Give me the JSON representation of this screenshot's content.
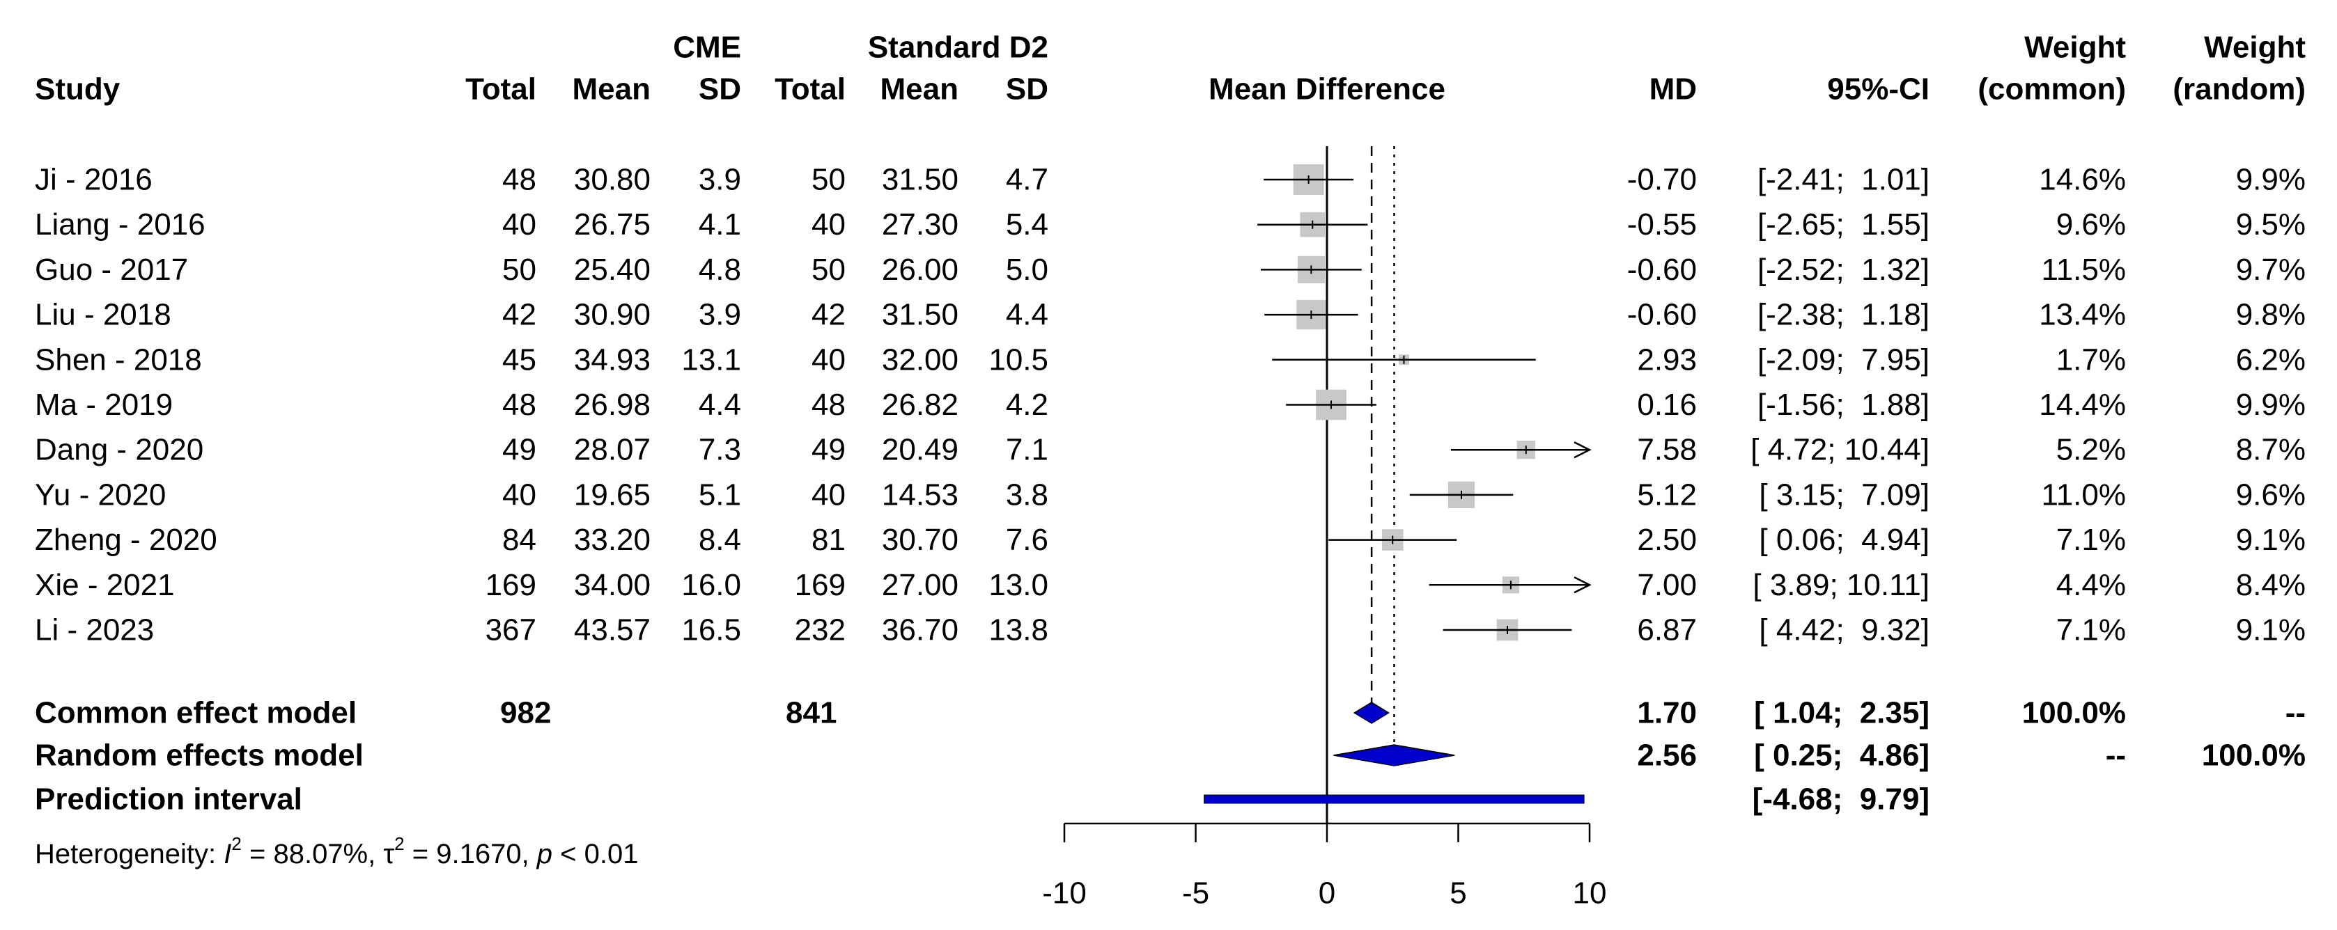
{
  "chart_data": {
    "type": "forest",
    "group_headers": {
      "experimental": "CME",
      "control": "Standard D2"
    },
    "column_headers": {
      "study": "Study",
      "total": "Total",
      "mean": "Mean",
      "sd": "SD",
      "plot": "Mean Difference",
      "md": "MD",
      "ci": "95%-CI",
      "weight_label": "Weight",
      "weight_common": "(common)",
      "weight_random": "(random)"
    },
    "studies": [
      {
        "name": "Ji - 2016",
        "e_total": "48",
        "e_mean": "30.80",
        "e_sd": "3.9",
        "c_total": "50",
        "c_mean": "31.50",
        "c_sd": "4.7",
        "md": -0.7,
        "lo": -2.41,
        "hi": 1.01,
        "md_text": "-0.70",
        "ci_text": "[-2.41;  1.01]",
        "w_common": "14.6%",
        "w_random": "9.9%"
      },
      {
        "name": "Liang - 2016",
        "e_total": "40",
        "e_mean": "26.75",
        "e_sd": "4.1",
        "c_total": "40",
        "c_mean": "27.30",
        "c_sd": "5.4",
        "md": -0.55,
        "lo": -2.65,
        "hi": 1.55,
        "md_text": "-0.55",
        "ci_text": "[-2.65;  1.55]",
        "w_common": "9.6%",
        "w_random": "9.5%"
      },
      {
        "name": "Guo - 2017",
        "e_total": "50",
        "e_mean": "25.40",
        "e_sd": "4.8",
        "c_total": "50",
        "c_mean": "26.00",
        "c_sd": "5.0",
        "md": -0.6,
        "lo": -2.52,
        "hi": 1.32,
        "md_text": "-0.60",
        "ci_text": "[-2.52;  1.32]",
        "w_common": "11.5%",
        "w_random": "9.7%"
      },
      {
        "name": "Liu - 2018",
        "e_total": "42",
        "e_mean": "30.90",
        "e_sd": "3.9",
        "c_total": "42",
        "c_mean": "31.50",
        "c_sd": "4.4",
        "md": -0.6,
        "lo": -2.38,
        "hi": 1.18,
        "md_text": "-0.60",
        "ci_text": "[-2.38;  1.18]",
        "w_common": "13.4%",
        "w_random": "9.8%"
      },
      {
        "name": "Shen - 2018",
        "e_total": "45",
        "e_mean": "34.93",
        "e_sd": "13.1",
        "c_total": "40",
        "c_mean": "32.00",
        "c_sd": "10.5",
        "md": 2.93,
        "lo": -2.09,
        "hi": 7.95,
        "md_text": "2.93",
        "ci_text": "[-2.09;  7.95]",
        "w_common": "1.7%",
        "w_random": "6.2%"
      },
      {
        "name": "Ma - 2019",
        "e_total": "48",
        "e_mean": "26.98",
        "e_sd": "4.4",
        "c_total": "48",
        "c_mean": "26.82",
        "c_sd": "4.2",
        "md": 0.16,
        "lo": -1.56,
        "hi": 1.88,
        "md_text": "0.16",
        "ci_text": "[-1.56;  1.88]",
        "w_common": "14.4%",
        "w_random": "9.9%"
      },
      {
        "name": "Dang - 2020",
        "e_total": "49",
        "e_mean": "28.07",
        "e_sd": "7.3",
        "c_total": "49",
        "c_mean": "20.49",
        "c_sd": "7.1",
        "md": 7.58,
        "lo": 4.72,
        "hi": 10.44,
        "md_text": "7.58",
        "ci_text": "[ 4.72; 10.44]",
        "w_common": "5.2%",
        "w_random": "8.7%"
      },
      {
        "name": "Yu - 2020",
        "e_total": "40",
        "e_mean": "19.65",
        "e_sd": "5.1",
        "c_total": "40",
        "c_mean": "14.53",
        "c_sd": "3.8",
        "md": 5.12,
        "lo": 3.15,
        "hi": 7.09,
        "md_text": "5.12",
        "ci_text": "[ 3.15;  7.09]",
        "w_common": "11.0%",
        "w_random": "9.6%"
      },
      {
        "name": "Zheng - 2020",
        "e_total": "84",
        "e_mean": "33.20",
        "e_sd": "8.4",
        "c_total": "81",
        "c_mean": "30.70",
        "c_sd": "7.6",
        "md": 2.5,
        "lo": 0.06,
        "hi": 4.94,
        "md_text": "2.50",
        "ci_text": "[ 0.06;  4.94]",
        "w_common": "7.1%",
        "w_random": "9.1%"
      },
      {
        "name": "Xie - 2021",
        "e_total": "169",
        "e_mean": "34.00",
        "e_sd": "16.0",
        "c_total": "169",
        "c_mean": "27.00",
        "c_sd": "13.0",
        "md": 7.0,
        "lo": 3.89,
        "hi": 10.11,
        "md_text": "7.00",
        "ci_text": "[ 3.89; 10.11]",
        "w_common": "4.4%",
        "w_random": "8.4%"
      },
      {
        "name": "Li - 2023",
        "e_total": "367",
        "e_mean": "43.57",
        "e_sd": "16.5",
        "c_total": "232",
        "c_mean": "36.70",
        "c_sd": "13.8",
        "md": 6.87,
        "lo": 4.42,
        "hi": 9.32,
        "md_text": "6.87",
        "ci_text": "[ 4.42;  9.32]",
        "w_common": "7.1%",
        "w_random": "9.1%"
      }
    ],
    "summary": [
      {
        "name": "Common effect model",
        "kind": "diamond",
        "md": 1.7,
        "lo": 1.04,
        "hi": 2.35,
        "e_total": "982",
        "c_total": "841",
        "md_text": "1.70",
        "ci_text": "[ 1.04;  2.35]",
        "w_common": "100.0%",
        "w_random": "--"
      },
      {
        "name": "Random effects model",
        "kind": "diamond",
        "md": 2.56,
        "lo": 0.25,
        "hi": 4.86,
        "e_total": "",
        "c_total": "",
        "md_text": "2.56",
        "ci_text": "[ 0.25;  4.86]",
        "w_common": "--",
        "w_random": "100.0%"
      },
      {
        "name": "Prediction interval",
        "kind": "bar",
        "md": 2.56,
        "lo": -4.68,
        "hi": 9.79,
        "e_total": "",
        "c_total": "",
        "md_text": "",
        "ci_text": "[-4.68;  9.79]",
        "w_common": "",
        "w_random": ""
      }
    ],
    "heterogeneity": {
      "prefix": "Heterogeneity: ",
      "i2_symbol": "I",
      "i2_exp": "2",
      "i2_value": " = 88.07%, ",
      "tau_symbol": "τ",
      "tau_exp": "2",
      "tau_value": " = 9.1670, ",
      "p_symbol": "p",
      "p_value": " < 0.01"
    },
    "x_axis": {
      "min": -10,
      "max": 10,
      "ticks": [
        -10,
        -5,
        0,
        5,
        10
      ],
      "tick_labels": [
        "-10",
        "-5",
        "0",
        "5",
        "10"
      ]
    },
    "reference_lines": {
      "null": 0,
      "common": 1.7,
      "random": 2.56
    },
    "colors": {
      "diamond": "#0000cc",
      "square": "#c8c8c8",
      "line": "#000000"
    }
  }
}
